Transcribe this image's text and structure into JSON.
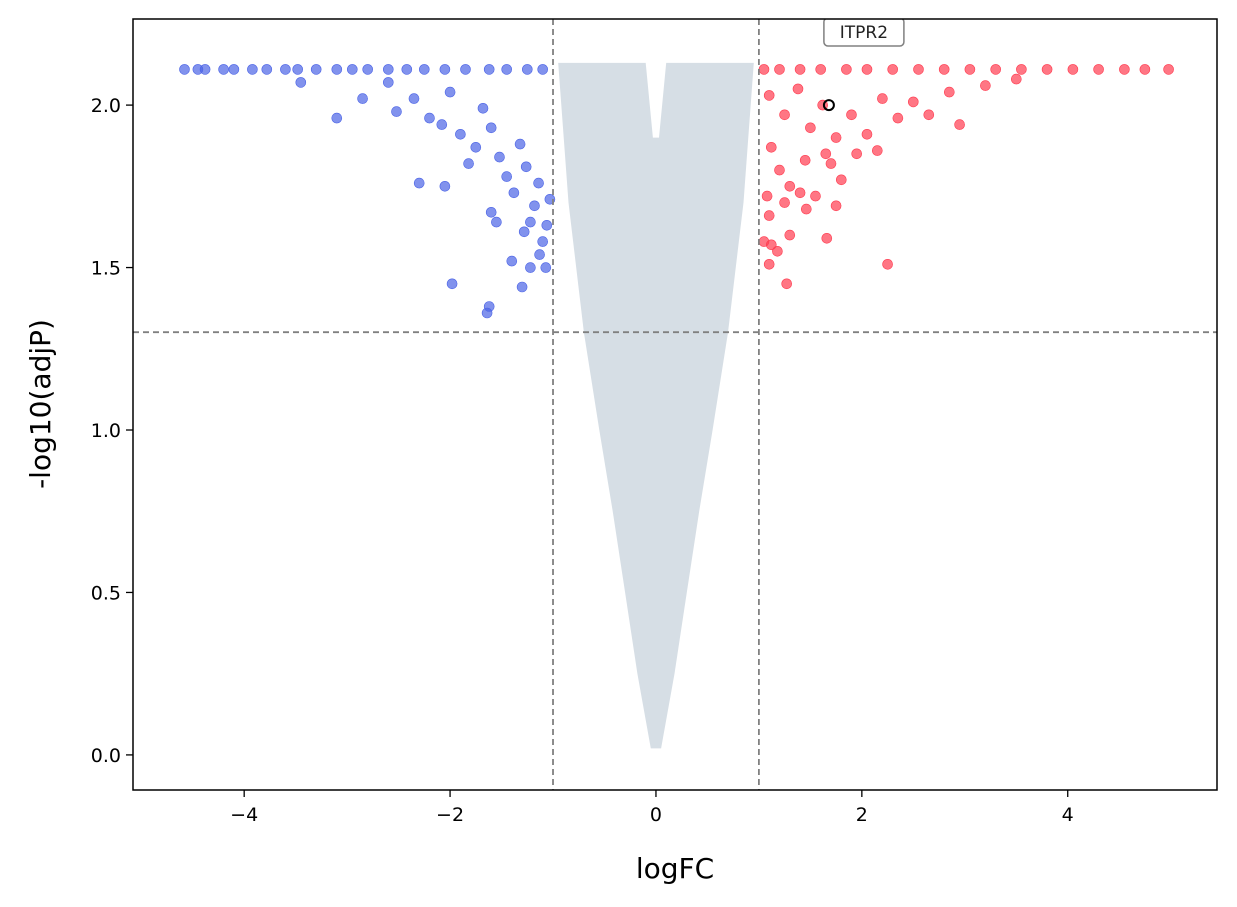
{
  "chart_data": {
    "type": "scatter",
    "title": "",
    "xlabel": "logFC",
    "ylabel": "-log10(adjP)",
    "xlim": [
      -5.08,
      5.45
    ],
    "ylim": [
      -0.108,
      2.265
    ],
    "x_ticks": [
      -4,
      -2,
      0,
      2,
      4
    ],
    "x_tick_labels": [
      "−4",
      "−2",
      "0",
      "2",
      "4"
    ],
    "y_ticks": [
      0.0,
      0.5,
      1.0,
      1.5,
      2.0
    ],
    "y_tick_labels": [
      "0.0",
      "0.5",
      "1.0",
      "1.5",
      "2.0"
    ],
    "thresholds": {
      "logfc": [
        -1,
        1
      ],
      "neg_log10_adjp": 1.301
    },
    "colors": {
      "down": "#4c64e6",
      "up": "#ff3c50",
      "ns": "#d2dae2",
      "threshold": "#808080"
    },
    "series": [
      {
        "name": "down",
        "points": [
          [
            -4.58,
            2.11
          ],
          [
            -4.45,
            2.11
          ],
          [
            -4.38,
            2.11
          ],
          [
            -4.2,
            2.11
          ],
          [
            -4.1,
            2.11
          ],
          [
            -3.92,
            2.11
          ],
          [
            -3.78,
            2.11
          ],
          [
            -3.6,
            2.11
          ],
          [
            -3.48,
            2.11
          ],
          [
            -3.3,
            2.11
          ],
          [
            -3.1,
            2.11
          ],
          [
            -2.95,
            2.11
          ],
          [
            -2.8,
            2.11
          ],
          [
            -2.6,
            2.11
          ],
          [
            -2.42,
            2.11
          ],
          [
            -2.25,
            2.11
          ],
          [
            -2.05,
            2.11
          ],
          [
            -1.85,
            2.11
          ],
          [
            -1.62,
            2.11
          ],
          [
            -1.45,
            2.11
          ],
          [
            -1.25,
            2.11
          ],
          [
            -1.1,
            2.11
          ],
          [
            -3.45,
            2.07
          ],
          [
            -3.1,
            1.96
          ],
          [
            -2.85,
            2.02
          ],
          [
            -2.6,
            2.07
          ],
          [
            -2.52,
            1.98
          ],
          [
            -2.35,
            2.02
          ],
          [
            -2.2,
            1.96
          ],
          [
            -2.08,
            1.94
          ],
          [
            -2.0,
            2.04
          ],
          [
            -1.9,
            1.91
          ],
          [
            -1.82,
            1.82
          ],
          [
            -1.75,
            1.87
          ],
          [
            -1.68,
            1.99
          ],
          [
            -1.6,
            1.93
          ],
          [
            -1.52,
            1.84
          ],
          [
            -1.45,
            1.78
          ],
          [
            -1.38,
            1.73
          ],
          [
            -1.32,
            1.88
          ],
          [
            -1.26,
            1.81
          ],
          [
            -1.22,
            1.64
          ],
          [
            -1.18,
            1.69
          ],
          [
            -1.14,
            1.76
          ],
          [
            -1.1,
            1.58
          ],
          [
            -1.06,
            1.63
          ],
          [
            -1.03,
            1.71
          ],
          [
            -2.3,
            1.76
          ],
          [
            -2.05,
            1.75
          ],
          [
            -1.6,
            1.67
          ],
          [
            -1.55,
            1.64
          ],
          [
            -1.4,
            1.52
          ],
          [
            -1.28,
            1.61
          ],
          [
            -1.22,
            1.5
          ],
          [
            -1.13,
            1.54
          ],
          [
            -1.07,
            1.5
          ],
          [
            -1.98,
            1.45
          ],
          [
            -1.62,
            1.38
          ],
          [
            -1.64,
            1.36
          ],
          [
            -1.3,
            1.44
          ]
        ]
      },
      {
        "name": "up",
        "points": [
          [
            1.05,
            2.11
          ],
          [
            1.2,
            2.11
          ],
          [
            1.4,
            2.11
          ],
          [
            1.6,
            2.11
          ],
          [
            1.85,
            2.11
          ],
          [
            2.05,
            2.11
          ],
          [
            2.3,
            2.11
          ],
          [
            2.55,
            2.11
          ],
          [
            2.8,
            2.11
          ],
          [
            3.05,
            2.11
          ],
          [
            3.3,
            2.11
          ],
          [
            3.55,
            2.11
          ],
          [
            3.8,
            2.11
          ],
          [
            4.05,
            2.11
          ],
          [
            4.3,
            2.11
          ],
          [
            4.55,
            2.11
          ],
          [
            4.75,
            2.11
          ],
          [
            4.98,
            2.11
          ],
          [
            1.1,
            2.03
          ],
          [
            1.25,
            1.97
          ],
          [
            1.38,
            2.05
          ],
          [
            1.5,
            1.93
          ],
          [
            1.62,
            2.0
          ],
          [
            1.75,
            1.9
          ],
          [
            1.9,
            1.97
          ],
          [
            2.05,
            1.91
          ],
          [
            2.2,
            2.02
          ],
          [
            2.35,
            1.96
          ],
          [
            2.5,
            2.01
          ],
          [
            2.65,
            1.97
          ],
          [
            2.85,
            2.04
          ],
          [
            2.95,
            1.94
          ],
          [
            3.2,
            2.06
          ],
          [
            3.5,
            2.08
          ],
          [
            1.12,
            1.87
          ],
          [
            1.2,
            1.8
          ],
          [
            1.3,
            1.75
          ],
          [
            1.45,
            1.83
          ],
          [
            1.55,
            1.72
          ],
          [
            1.65,
            1.85
          ],
          [
            1.8,
            1.77
          ],
          [
            1.95,
            1.85
          ],
          [
            2.15,
            1.86
          ],
          [
            1.08,
            1.72
          ],
          [
            1.1,
            1.66
          ],
          [
            1.25,
            1.7
          ],
          [
            1.4,
            1.73
          ],
          [
            1.46,
            1.68
          ],
          [
            1.7,
            1.82
          ],
          [
            1.75,
            1.69
          ],
          [
            1.05,
            1.58
          ],
          [
            1.12,
            1.57
          ],
          [
            1.18,
            1.55
          ],
          [
            1.3,
            1.6
          ],
          [
            1.66,
            1.59
          ],
          [
            1.1,
            1.51
          ],
          [
            2.25,
            1.51
          ],
          [
            1.27,
            1.45
          ]
        ]
      },
      {
        "name": "ns",
        "points": []
      }
    ],
    "annotations": [
      {
        "label": "ITPR2",
        "x": 1.68,
        "y": 2.0
      }
    ]
  }
}
